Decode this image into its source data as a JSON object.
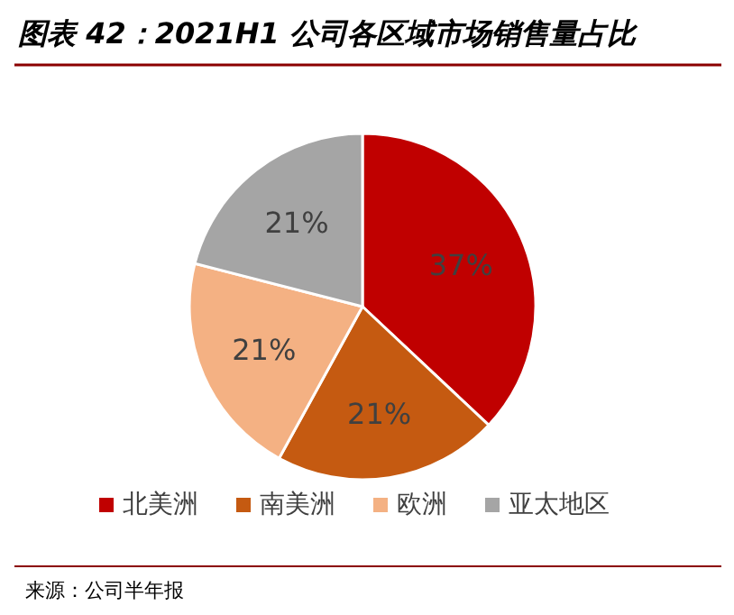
{
  "chart_data": {
    "type": "pie",
    "title": "图表 42：2021H1 公司各区域市场销售量占比",
    "categories": [
      "北美洲",
      "南美洲",
      "欧洲",
      "亚太地区"
    ],
    "values": [
      37,
      21,
      21,
      21
    ],
    "colors": [
      "#c00000",
      "#c55a11",
      "#f4b183",
      "#a5a5a5"
    ],
    "value_labels": [
      "37%",
      "21%",
      "21%",
      "21%"
    ],
    "legend": "bottom",
    "annotations": [
      "来源：公司半年报"
    ]
  }
}
